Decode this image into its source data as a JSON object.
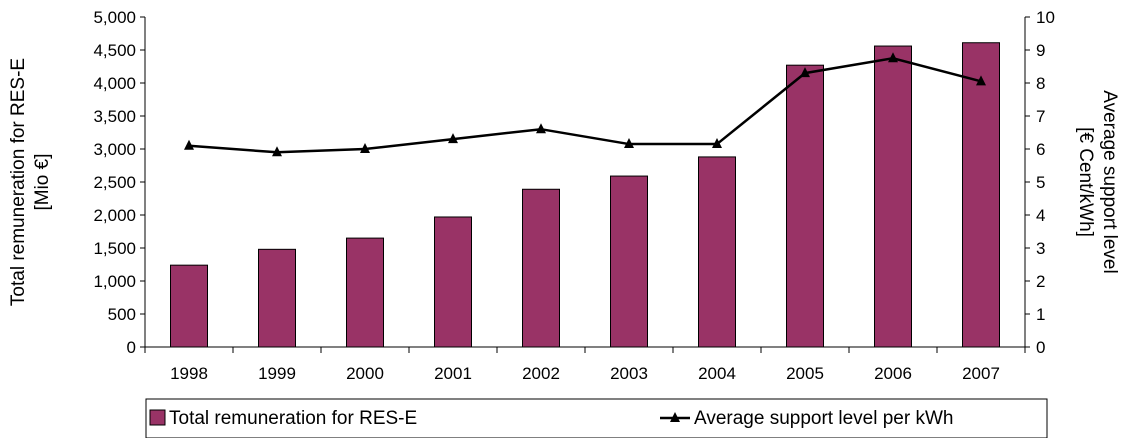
{
  "chart_data": {
    "type": "bar",
    "categories": [
      "1998",
      "1999",
      "2000",
      "2001",
      "2002",
      "2003",
      "2004",
      "2005",
      "2006",
      "2007"
    ],
    "series": [
      {
        "name": "Total remuneration for RES-E",
        "type": "bar",
        "axis": "left",
        "values": [
          1240,
          1480,
          1650,
          1970,
          2390,
          2590,
          2880,
          4270,
          4560,
          4610
        ]
      },
      {
        "name": "Average support level per kWh",
        "type": "line",
        "axis": "right",
        "marker": "triangle",
        "values": [
          6.1,
          5.9,
          6.0,
          6.3,
          6.6,
          6.15,
          6.15,
          8.3,
          8.75,
          8.05
        ]
      }
    ],
    "ylabel_left": [
      "Total remuneration for RES-E",
      "[Mio €]"
    ],
    "ylabel_right": [
      "Average support level",
      "[€ Cent/kWh]"
    ],
    "ylim_left": [
      0,
      5000
    ],
    "ylim_right": [
      0,
      10
    ],
    "yticks_left": [
      "0",
      "500",
      "1,000",
      "1,500",
      "2,000",
      "2,500",
      "3,000",
      "3,500",
      "4,000",
      "4,500",
      "5,000"
    ],
    "yticks_right": [
      "0",
      "1",
      "2",
      "3",
      "4",
      "5",
      "6",
      "7",
      "8",
      "9",
      "10"
    ],
    "grid": false,
    "legend_position": "bottom",
    "colors": {
      "bar": "#993366",
      "line": "#000000"
    }
  }
}
